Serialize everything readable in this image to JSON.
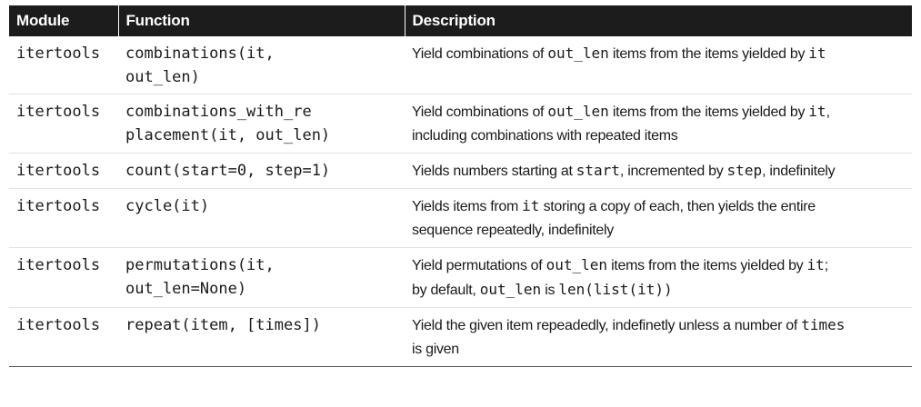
{
  "table": {
    "headers": [
      "Module",
      "Function",
      "Description"
    ],
    "rows": [
      {
        "module": "itertools",
        "function": "combinations(it,\nout_len)",
        "description": [
          {
            "t": "Yield combinations of "
          },
          {
            "t": "out_len",
            "code": true
          },
          {
            "t": " items from the items yielded by "
          },
          {
            "t": "it",
            "code": true
          }
        ]
      },
      {
        "module": "itertools",
        "function": "combinations_with_re\nplacement(it, out_len)",
        "description": [
          {
            "t": "Yield combinations of "
          },
          {
            "t": "out_len",
            "code": true
          },
          {
            "t": " items from the items yielded by "
          },
          {
            "t": "it",
            "code": true
          },
          {
            "t": ",\nincluding combinations with repeated items"
          }
        ]
      },
      {
        "module": "itertools",
        "function": "count(start=0, step=1)",
        "description": [
          {
            "t": "Yields numbers starting at "
          },
          {
            "t": "start",
            "code": true
          },
          {
            "t": ", incremented by "
          },
          {
            "t": "step",
            "code": true
          },
          {
            "t": ", indefinitely"
          }
        ]
      },
      {
        "module": "itertools",
        "function": "cycle(it)",
        "description": [
          {
            "t": "Yields items from "
          },
          {
            "t": "it",
            "code": true
          },
          {
            "t": " storing a copy of each, then yields the entire\nsequence repeatedly, indefinitely"
          }
        ]
      },
      {
        "module": "itertools",
        "function": "permutations(it,\nout_len=None)",
        "description": [
          {
            "t": "Yield permutations of "
          },
          {
            "t": "out_len",
            "code": true
          },
          {
            "t": " items from the items yielded by "
          },
          {
            "t": "it",
            "code": true
          },
          {
            "t": ";\nby default, "
          },
          {
            "t": "out_len",
            "code": true
          },
          {
            "t": " is "
          },
          {
            "t": "len(list(it))",
            "code": true
          }
        ]
      },
      {
        "module": "itertools",
        "function": "repeat(item, [times])",
        "description": [
          {
            "t": "Yield the given item repeadedly, indefinetly unless a number of "
          },
          {
            "t": "times",
            "code": true
          },
          {
            "t": "\nis given"
          }
        ]
      }
    ]
  }
}
